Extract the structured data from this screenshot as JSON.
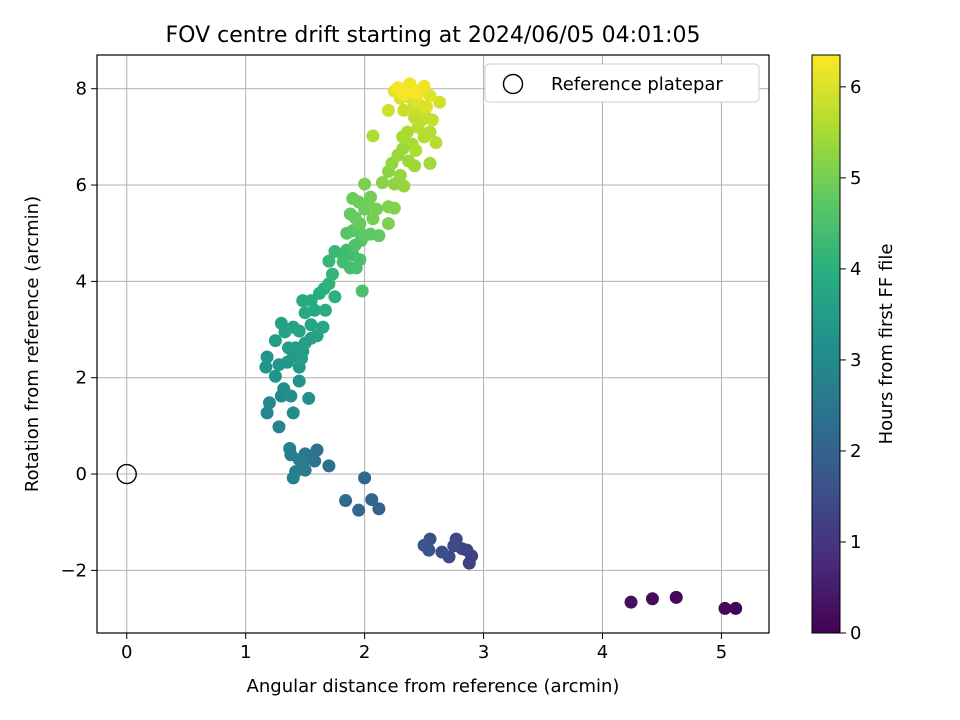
{
  "chart_data": {
    "type": "scatter",
    "title": "FOV centre drift starting at 2024/06/05 04:01:05",
    "xlabel": "Angular distance from reference (arcmin)",
    "ylabel": "Rotation from reference (arcmin)",
    "xlim": [
      -0.25,
      5.4
    ],
    "ylim": [
      -3.3,
      8.7
    ],
    "xticks": [
      "0",
      "1",
      "2",
      "3",
      "4",
      "5"
    ],
    "yticks": [
      "−2",
      "0",
      "2",
      "4",
      "6",
      "8"
    ],
    "grid": true,
    "legend": {
      "location": "top-right",
      "entries": [
        "Reference platepar"
      ]
    },
    "reference_point": {
      "x": 0,
      "y": 0,
      "label": "Reference platepar"
    },
    "colorbar": {
      "label": "Hours from first FF file",
      "range": [
        0,
        6.35
      ],
      "ticks": [
        "0",
        "1",
        "2",
        "3",
        "4",
        "5",
        "6"
      ],
      "colormap": "viridis"
    },
    "points": [
      {
        "x": 5.12,
        "y": -2.79,
        "c": 0.05
      },
      {
        "x": 5.03,
        "y": -2.79,
        "c": 0.1
      },
      {
        "x": 4.62,
        "y": -2.56,
        "c": 0.15
      },
      {
        "x": 4.42,
        "y": -2.59,
        "c": 0.2
      },
      {
        "x": 4.24,
        "y": -2.66,
        "c": 0.25
      },
      {
        "x": 2.88,
        "y": -1.85,
        "c": 1.15
      },
      {
        "x": 2.9,
        "y": -1.7,
        "c": 1.2
      },
      {
        "x": 2.86,
        "y": -1.58,
        "c": 1.25
      },
      {
        "x": 2.82,
        "y": -1.55,
        "c": 1.3
      },
      {
        "x": 2.77,
        "y": -1.35,
        "c": 1.35
      },
      {
        "x": 2.75,
        "y": -1.49,
        "c": 1.4
      },
      {
        "x": 2.71,
        "y": -1.72,
        "c": 1.45
      },
      {
        "x": 2.65,
        "y": -1.62,
        "c": 1.5
      },
      {
        "x": 2.55,
        "y": -1.35,
        "c": 1.55
      },
      {
        "x": 2.54,
        "y": -1.58,
        "c": 1.6
      },
      {
        "x": 2.5,
        "y": -1.48,
        "c": 1.65
      },
      {
        "x": 2.12,
        "y": -0.72,
        "c": 2.0
      },
      {
        "x": 2.06,
        "y": -0.53,
        "c": 2.05
      },
      {
        "x": 2.0,
        "y": -0.08,
        "c": 2.1
      },
      {
        "x": 1.95,
        "y": -0.75,
        "c": 2.15
      },
      {
        "x": 1.84,
        "y": -0.55,
        "c": 2.2
      },
      {
        "x": 1.7,
        "y": 0.17,
        "c": 2.3
      },
      {
        "x": 1.6,
        "y": 0.5,
        "c": 2.35
      },
      {
        "x": 1.58,
        "y": 0.27,
        "c": 2.4
      },
      {
        "x": 1.55,
        "y": 0.35,
        "c": 2.45
      },
      {
        "x": 1.5,
        "y": 0.42,
        "c": 2.5
      },
      {
        "x": 1.48,
        "y": 0.22,
        "c": 2.55
      },
      {
        "x": 1.5,
        "y": 0.08,
        "c": 2.6
      },
      {
        "x": 1.45,
        "y": 0.3,
        "c": 2.65
      },
      {
        "x": 1.42,
        "y": 0.05,
        "c": 2.7
      },
      {
        "x": 1.38,
        "y": 0.4,
        "c": 2.72
      },
      {
        "x": 1.37,
        "y": 0.53,
        "c": 2.75
      },
      {
        "x": 1.4,
        "y": -0.08,
        "c": 2.78
      },
      {
        "x": 1.28,
        "y": 0.98,
        "c": 2.85
      },
      {
        "x": 1.18,
        "y": 1.27,
        "c": 2.9
      },
      {
        "x": 1.2,
        "y": 1.48,
        "c": 2.95
      },
      {
        "x": 1.3,
        "y": 1.62,
        "c": 3.0
      },
      {
        "x": 1.32,
        "y": 1.77,
        "c": 3.05
      },
      {
        "x": 1.4,
        "y": 1.27,
        "c": 3.1
      },
      {
        "x": 1.38,
        "y": 1.62,
        "c": 3.12
      },
      {
        "x": 1.53,
        "y": 1.57,
        "c": 3.15
      },
      {
        "x": 1.45,
        "y": 1.93,
        "c": 3.2
      },
      {
        "x": 1.25,
        "y": 2.03,
        "c": 3.25
      },
      {
        "x": 1.17,
        "y": 2.22,
        "c": 3.28
      },
      {
        "x": 1.18,
        "y": 2.43,
        "c": 3.3
      },
      {
        "x": 1.28,
        "y": 2.27,
        "c": 3.32
      },
      {
        "x": 1.35,
        "y": 2.32,
        "c": 3.35
      },
      {
        "x": 1.4,
        "y": 2.45,
        "c": 3.38
      },
      {
        "x": 1.45,
        "y": 2.22,
        "c": 3.4
      },
      {
        "x": 1.48,
        "y": 2.55,
        "c": 3.43
      },
      {
        "x": 1.42,
        "y": 2.62,
        "c": 3.45
      },
      {
        "x": 1.36,
        "y": 2.62,
        "c": 3.48
      },
      {
        "x": 1.25,
        "y": 2.77,
        "c": 3.5
      },
      {
        "x": 1.47,
        "y": 2.4,
        "c": 3.52
      },
      {
        "x": 1.5,
        "y": 2.72,
        "c": 3.55
      },
      {
        "x": 1.55,
        "y": 2.82,
        "c": 3.58
      },
      {
        "x": 1.6,
        "y": 2.87,
        "c": 3.6
      },
      {
        "x": 1.33,
        "y": 2.95,
        "c": 3.62
      },
      {
        "x": 1.3,
        "y": 3.13,
        "c": 3.65
      },
      {
        "x": 1.4,
        "y": 3.05,
        "c": 3.68
      },
      {
        "x": 1.45,
        "y": 2.97,
        "c": 3.7
      },
      {
        "x": 1.55,
        "y": 3.1,
        "c": 3.72
      },
      {
        "x": 1.65,
        "y": 3.05,
        "c": 3.75
      },
      {
        "x": 1.5,
        "y": 3.35,
        "c": 3.8
      },
      {
        "x": 1.58,
        "y": 3.4,
        "c": 3.82
      },
      {
        "x": 1.48,
        "y": 3.6,
        "c": 3.85
      },
      {
        "x": 1.55,
        "y": 3.6,
        "c": 3.88
      },
      {
        "x": 1.67,
        "y": 3.4,
        "c": 3.9
      },
      {
        "x": 1.62,
        "y": 3.75,
        "c": 3.95
      },
      {
        "x": 1.66,
        "y": 3.85,
        "c": 4.0
      },
      {
        "x": 1.75,
        "y": 3.68,
        "c": 4.05
      },
      {
        "x": 1.7,
        "y": 3.95,
        "c": 4.1
      },
      {
        "x": 1.73,
        "y": 4.15,
        "c": 4.15
      },
      {
        "x": 1.7,
        "y": 4.42,
        "c": 4.2
      },
      {
        "x": 1.75,
        "y": 4.62,
        "c": 4.25
      },
      {
        "x": 1.82,
        "y": 4.55,
        "c": 4.3
      },
      {
        "x": 1.85,
        "y": 4.65,
        "c": 4.35
      },
      {
        "x": 1.9,
        "y": 4.55,
        "c": 4.38
      },
      {
        "x": 1.82,
        "y": 4.4,
        "c": 4.4
      },
      {
        "x": 1.88,
        "y": 4.28,
        "c": 4.42
      },
      {
        "x": 1.93,
        "y": 4.28,
        "c": 4.45
      },
      {
        "x": 1.96,
        "y": 4.45,
        "c": 4.48
      },
      {
        "x": 1.98,
        "y": 3.8,
        "c": 4.5
      },
      {
        "x": 1.92,
        "y": 4.75,
        "c": 4.55
      },
      {
        "x": 1.97,
        "y": 4.85,
        "c": 4.6
      },
      {
        "x": 1.85,
        "y": 5.0,
        "c": 4.62
      },
      {
        "x": 1.9,
        "y": 5.05,
        "c": 4.65
      },
      {
        "x": 1.95,
        "y": 5.1,
        "c": 4.7
      },
      {
        "x": 2.0,
        "y": 4.95,
        "c": 4.72
      },
      {
        "x": 2.05,
        "y": 4.98,
        "c": 4.75
      },
      {
        "x": 2.12,
        "y": 4.95,
        "c": 4.78
      },
      {
        "x": 1.88,
        "y": 5.4,
        "c": 4.8
      },
      {
        "x": 1.92,
        "y": 5.32,
        "c": 4.83
      },
      {
        "x": 1.96,
        "y": 5.2,
        "c": 4.85
      },
      {
        "x": 2.0,
        "y": 5.5,
        "c": 4.88
      },
      {
        "x": 1.9,
        "y": 5.72,
        "c": 4.9
      },
      {
        "x": 1.95,
        "y": 5.65,
        "c": 4.92
      },
      {
        "x": 2.03,
        "y": 5.62,
        "c": 4.95
      },
      {
        "x": 2.05,
        "y": 5.75,
        "c": 4.98
      },
      {
        "x": 2.07,
        "y": 5.3,
        "c": 5.0
      },
      {
        "x": 2.1,
        "y": 5.5,
        "c": 5.02
      },
      {
        "x": 2.0,
        "y": 6.02,
        "c": 5.05
      },
      {
        "x": 2.2,
        "y": 5.2,
        "c": 5.08
      },
      {
        "x": 2.2,
        "y": 5.55,
        "c": 5.1
      },
      {
        "x": 2.25,
        "y": 5.52,
        "c": 5.12
      },
      {
        "x": 2.15,
        "y": 6.05,
        "c": 5.18
      },
      {
        "x": 2.2,
        "y": 6.28,
        "c": 5.22
      },
      {
        "x": 2.25,
        "y": 6.02,
        "c": 5.25
      },
      {
        "x": 2.23,
        "y": 6.45,
        "c": 5.28
      },
      {
        "x": 2.3,
        "y": 6.2,
        "c": 5.3
      },
      {
        "x": 2.33,
        "y": 5.98,
        "c": 5.32
      },
      {
        "x": 2.28,
        "y": 6.62,
        "c": 5.35
      },
      {
        "x": 2.32,
        "y": 6.75,
        "c": 5.38
      },
      {
        "x": 2.37,
        "y": 6.5,
        "c": 5.4
      },
      {
        "x": 2.42,
        "y": 6.4,
        "c": 5.42
      },
      {
        "x": 2.55,
        "y": 6.45,
        "c": 5.45
      },
      {
        "x": 2.4,
        "y": 6.85,
        "c": 5.48
      },
      {
        "x": 2.32,
        "y": 7.0,
        "c": 5.5
      },
      {
        "x": 2.36,
        "y": 7.1,
        "c": 5.52
      },
      {
        "x": 2.43,
        "y": 6.72,
        "c": 5.55
      },
      {
        "x": 2.07,
        "y": 7.02,
        "c": 5.58
      },
      {
        "x": 2.5,
        "y": 7.0,
        "c": 5.6
      },
      {
        "x": 2.55,
        "y": 7.1,
        "c": 5.62
      },
      {
        "x": 2.6,
        "y": 6.88,
        "c": 5.65
      },
      {
        "x": 2.45,
        "y": 7.2,
        "c": 5.68
      },
      {
        "x": 2.48,
        "y": 7.35,
        "c": 5.7
      },
      {
        "x": 2.42,
        "y": 7.4,
        "c": 5.72
      },
      {
        "x": 2.52,
        "y": 7.4,
        "c": 5.75
      },
      {
        "x": 2.57,
        "y": 7.35,
        "c": 5.78
      },
      {
        "x": 2.5,
        "y": 7.5,
        "c": 5.8
      },
      {
        "x": 2.33,
        "y": 7.55,
        "c": 5.82
      },
      {
        "x": 2.4,
        "y": 7.58,
        "c": 5.85
      },
      {
        "x": 2.2,
        "y": 7.55,
        "c": 5.88
      },
      {
        "x": 2.63,
        "y": 7.72,
        "c": 5.9
      },
      {
        "x": 2.38,
        "y": 7.82,
        "c": 5.92
      },
      {
        "x": 2.3,
        "y": 7.8,
        "c": 5.95
      },
      {
        "x": 2.45,
        "y": 7.7,
        "c": 5.98
      },
      {
        "x": 2.52,
        "y": 7.62,
        "c": 6.0
      },
      {
        "x": 2.43,
        "y": 7.75,
        "c": 6.02
      },
      {
        "x": 2.55,
        "y": 7.85,
        "c": 6.05
      },
      {
        "x": 2.25,
        "y": 7.95,
        "c": 6.08
      },
      {
        "x": 2.3,
        "y": 8.0,
        "c": 6.1
      },
      {
        "x": 2.35,
        "y": 7.95,
        "c": 6.12
      },
      {
        "x": 2.4,
        "y": 8.0,
        "c": 6.15
      },
      {
        "x": 2.45,
        "y": 7.9,
        "c": 6.18
      },
      {
        "x": 2.5,
        "y": 8.05,
        "c": 6.2
      },
      {
        "x": 2.38,
        "y": 8.1,
        "c": 6.22
      },
      {
        "x": 2.33,
        "y": 7.88,
        "c": 6.25
      },
      {
        "x": 2.28,
        "y": 8.02,
        "c": 6.28
      },
      {
        "x": 2.42,
        "y": 7.92,
        "c": 6.3
      }
    ]
  }
}
